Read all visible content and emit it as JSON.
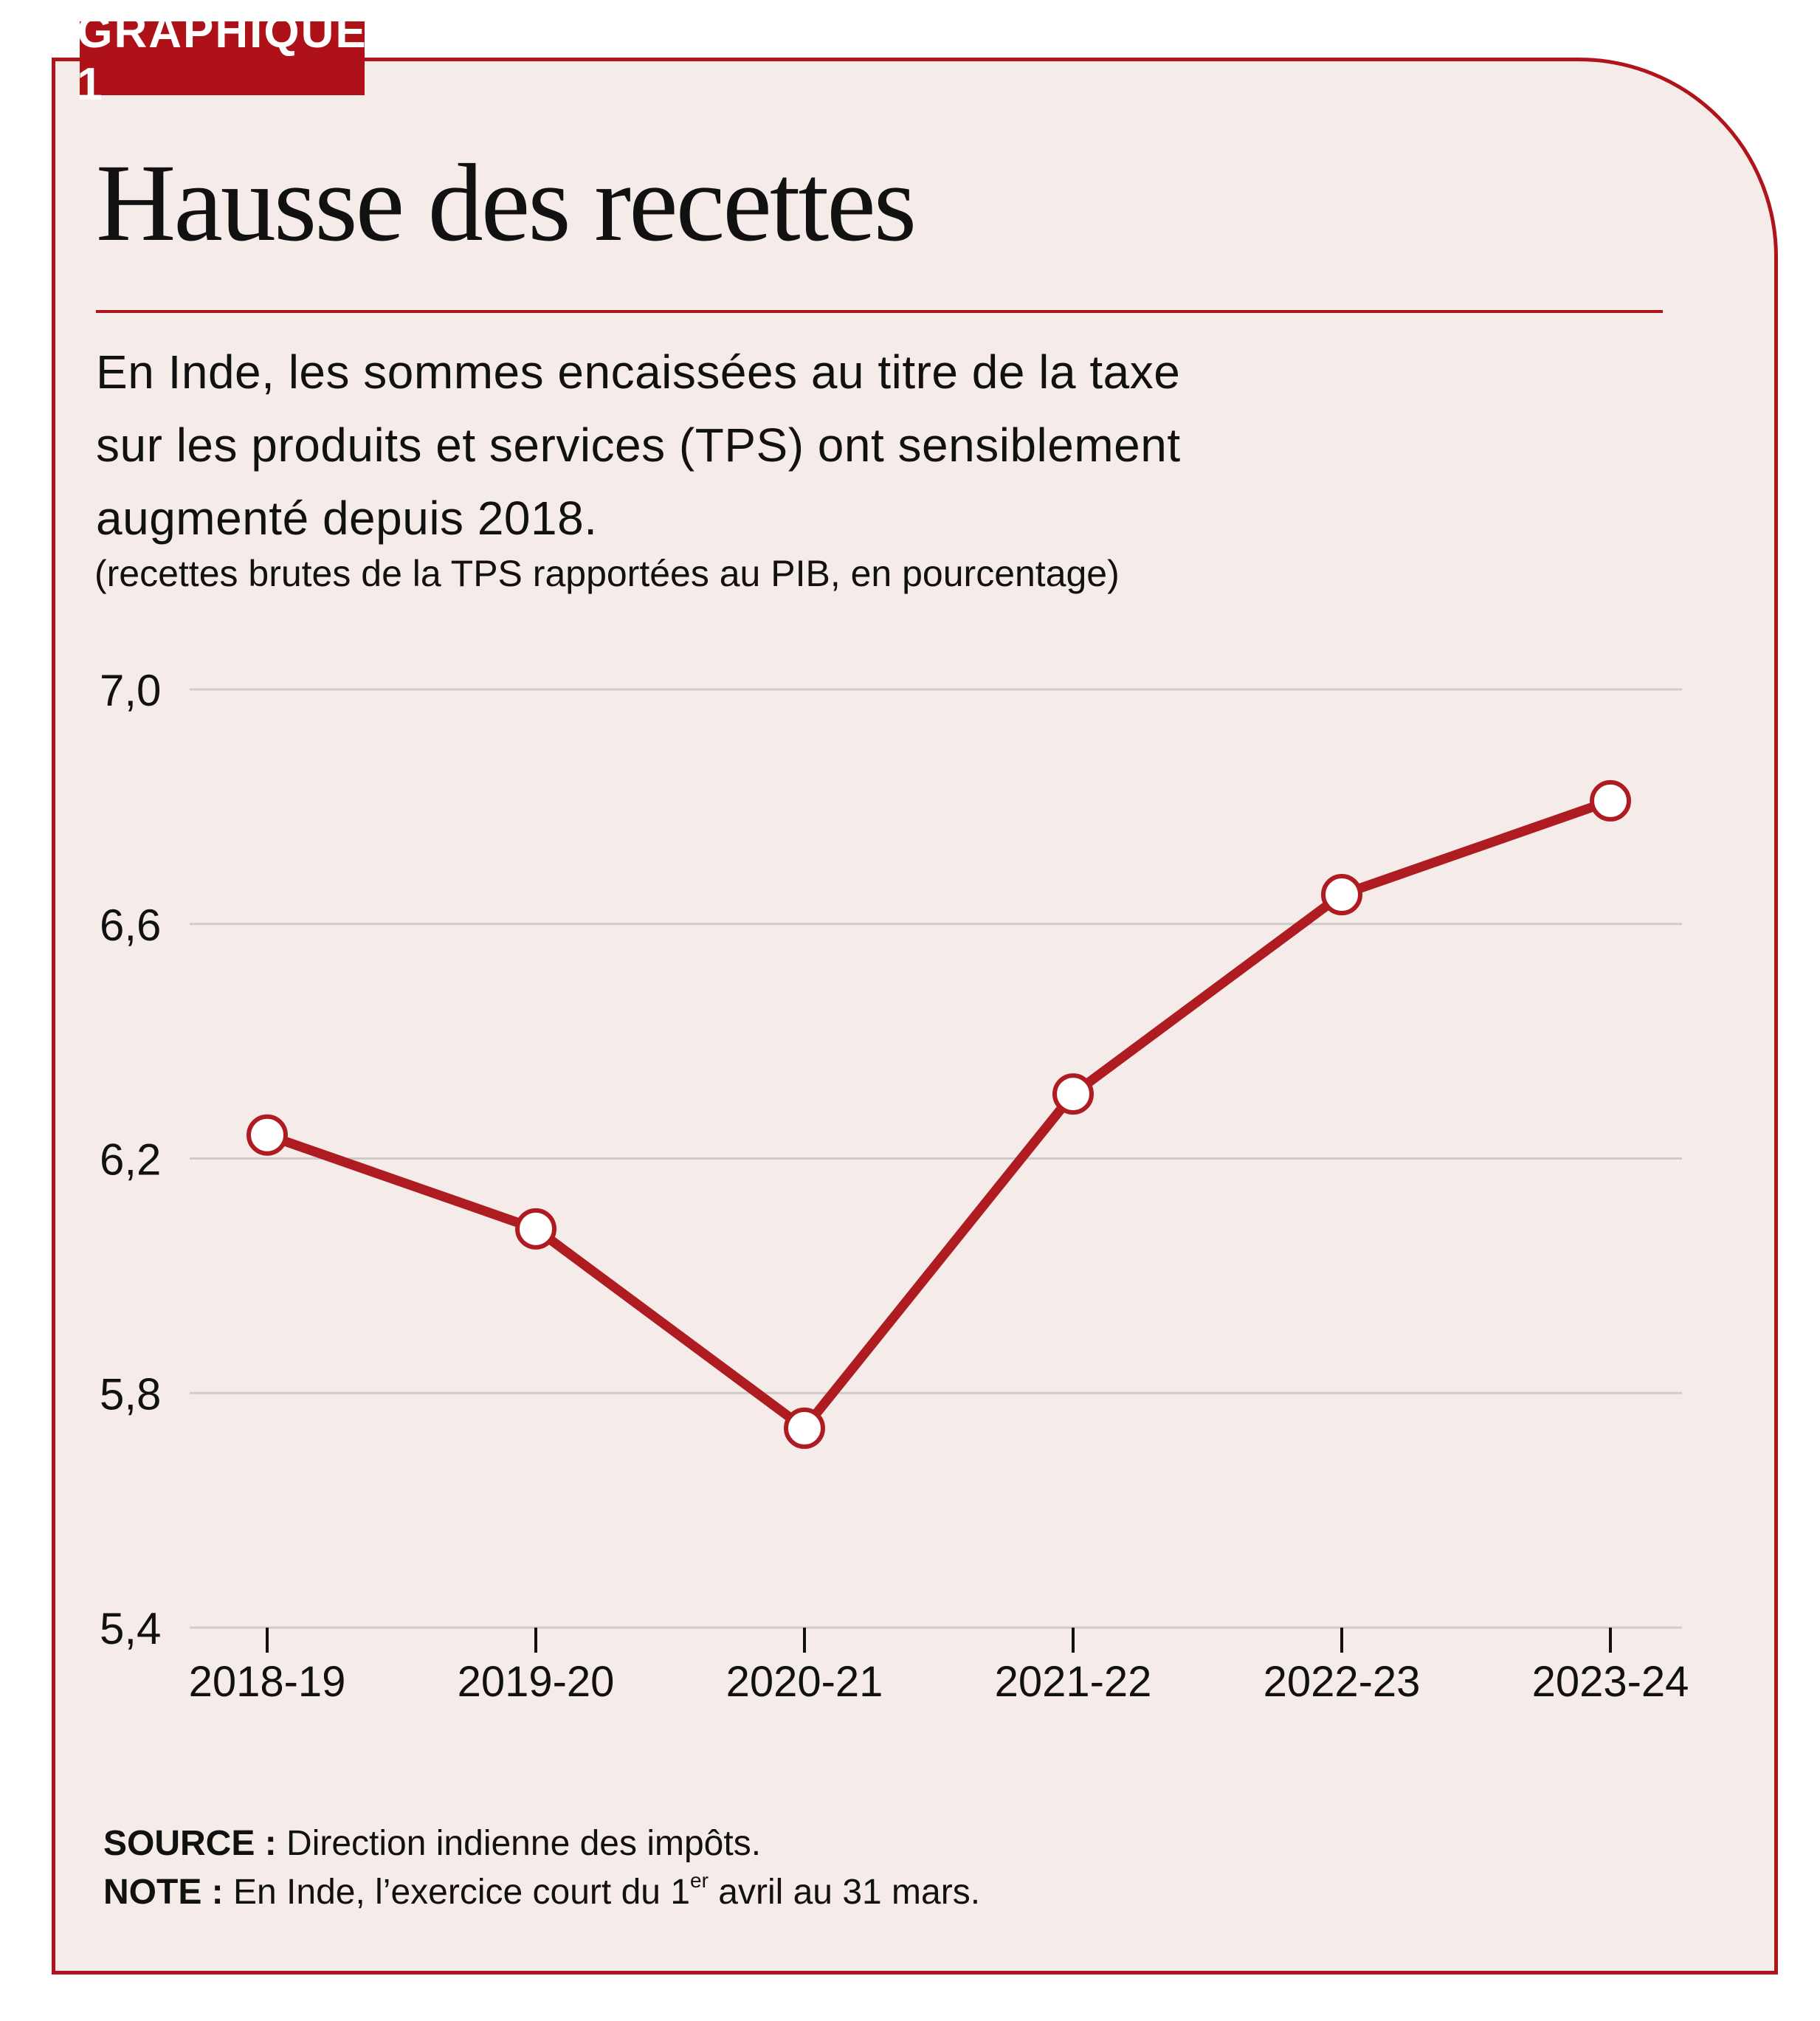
{
  "badge": "GRAPHIQUE 1",
  "title": "Hausse des recettes",
  "subtitle_lines": [
    "En Inde, les sommes encaissées au titre de la taxe",
    "sur les produits et services (TPS) ont sensiblement",
    "augmenté depuis 2018."
  ],
  "unit_note": "(recettes brutes de la TPS rapportées au PIB, en pourcentage)",
  "footer": {
    "source_label": "SOURCE :",
    "source_text": "Direction indienne des impôts.",
    "note_label": "NOTE :",
    "note_text_before": "En Inde, l’exercice court du 1",
    "note_sup": "er",
    "note_text_after": " avril au 31 mars."
  },
  "colors": {
    "accent": "#b0141a",
    "line": "#ae1c22",
    "background": "#f5ecea",
    "grid": "#cfcbc9",
    "marker_fill": "#ffffff"
  },
  "chart_data": {
    "type": "line",
    "title": "Hausse des recettes",
    "xlabel": "",
    "ylabel": "recettes brutes de la TPS rapportées au PIB, en pourcentage",
    "categories": [
      "2018-19",
      "2019-20",
      "2020-21",
      "2021-22",
      "2022-23",
      "2023-24"
    ],
    "series": [
      {
        "name": "Recettes brutes de la TPS (% du PIB)",
        "values": [
          6.24,
          6.08,
          5.74,
          6.31,
          6.65,
          6.81
        ]
      }
    ],
    "ylim": [
      5.4,
      7.0
    ],
    "yticks": [
      5.4,
      5.8,
      6.2,
      6.6,
      7.0
    ],
    "ytick_labels": [
      "5,4",
      "5,8",
      "6,2",
      "6,6",
      "7,0"
    ],
    "grid": true,
    "legend": "none"
  }
}
